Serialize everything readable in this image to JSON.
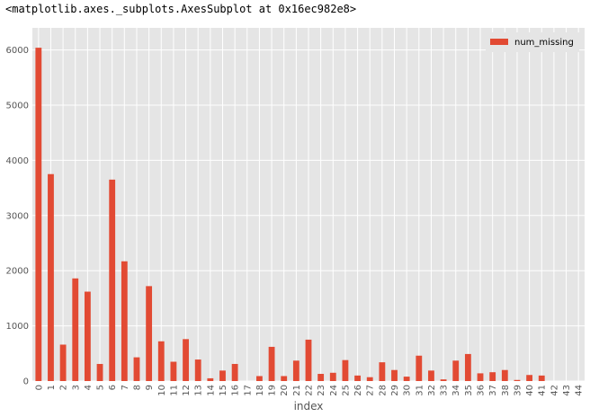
{
  "output": {
    "repr_text": "<matplotlib.axes._subplots.AxesSubplot at 0x16ec982e8>"
  },
  "chart_data": {
    "type": "bar",
    "title": "",
    "xlabel": "index",
    "ylabel": "",
    "ylim": [
      0,
      6400
    ],
    "grid": true,
    "legend_position": "top-right",
    "y_ticks": [
      0,
      1000,
      2000,
      3000,
      4000,
      5000,
      6000
    ],
    "categories": [
      "0",
      "1",
      "2",
      "3",
      "4",
      "5",
      "6",
      "7",
      "8",
      "9",
      "10",
      "11",
      "12",
      "13",
      "14",
      "15",
      "16",
      "17",
      "18",
      "19",
      "20",
      "21",
      "22",
      "23",
      "24",
      "25",
      "26",
      "27",
      "28",
      "29",
      "30",
      "31",
      "32",
      "33",
      "34",
      "35",
      "36",
      "37",
      "38",
      "39",
      "40",
      "41",
      "42",
      "43",
      "44"
    ],
    "series": [
      {
        "name": "num_missing",
        "color": "#e24a33",
        "values": [
          6040,
          3750,
          660,
          1860,
          1620,
          310,
          3650,
          2170,
          430,
          1720,
          720,
          350,
          760,
          390,
          50,
          190,
          310,
          0,
          90,
          620,
          90,
          370,
          750,
          130,
          150,
          380,
          100,
          70,
          340,
          200,
          80,
          460,
          190,
          30,
          370,
          490,
          140,
          160,
          200,
          20,
          110,
          100,
          0,
          0,
          0
        ]
      }
    ]
  }
}
